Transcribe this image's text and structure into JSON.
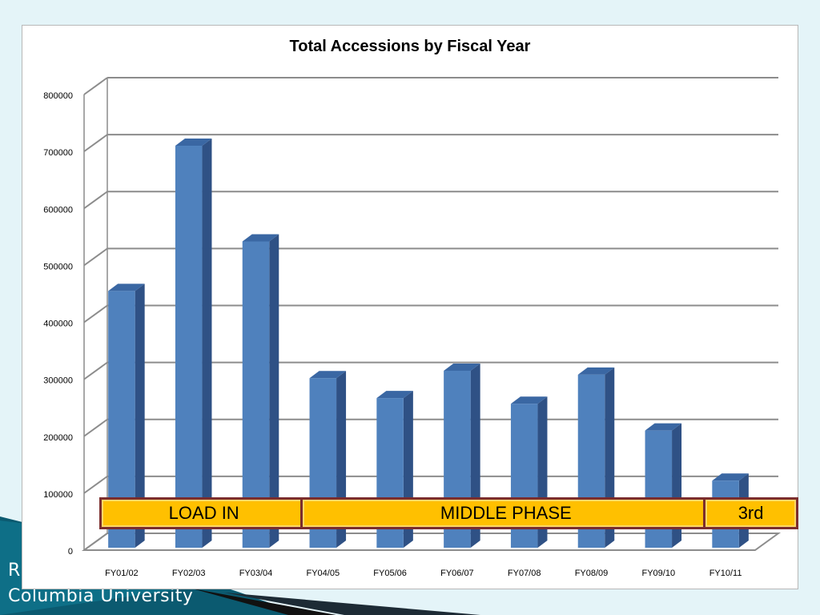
{
  "footer": {
    "line1": "R",
    "line2": "Columbia University"
  },
  "chart_data": {
    "type": "bar",
    "title": "Total Accessions by Fiscal Year",
    "xlabel": "",
    "ylabel": "",
    "ylim": [
      0,
      800000
    ],
    "yticks": [
      0,
      100000,
      200000,
      300000,
      400000,
      500000,
      600000,
      700000,
      800000
    ],
    "grid": true,
    "categories": [
      "FY01/02",
      "FY02/03",
      "FY03/04",
      "FY04/05",
      "FY05/06",
      "FY06/07",
      "FY07/08",
      "FY08/09",
      "FY09/10",
      "FY10/11"
    ],
    "values": [
      455000,
      710000,
      542000,
      302000,
      267000,
      315000,
      257000,
      308000,
      210000,
      122000
    ],
    "colors": {
      "bar_front": "#4f81bd",
      "bar_side": "#2f5185",
      "bar_top": "#3a67a3",
      "grid": "#8c8c8c"
    },
    "annotations": [
      {
        "label": "LOAD IN",
        "from": "FY01/02",
        "to": "FY03/04"
      },
      {
        "label": "MIDDLE PHASE",
        "from": "FY04/05",
        "to": "FY09/10"
      },
      {
        "label": "3rd",
        "from": "FY10/11",
        "to": "FY10/11"
      }
    ]
  }
}
